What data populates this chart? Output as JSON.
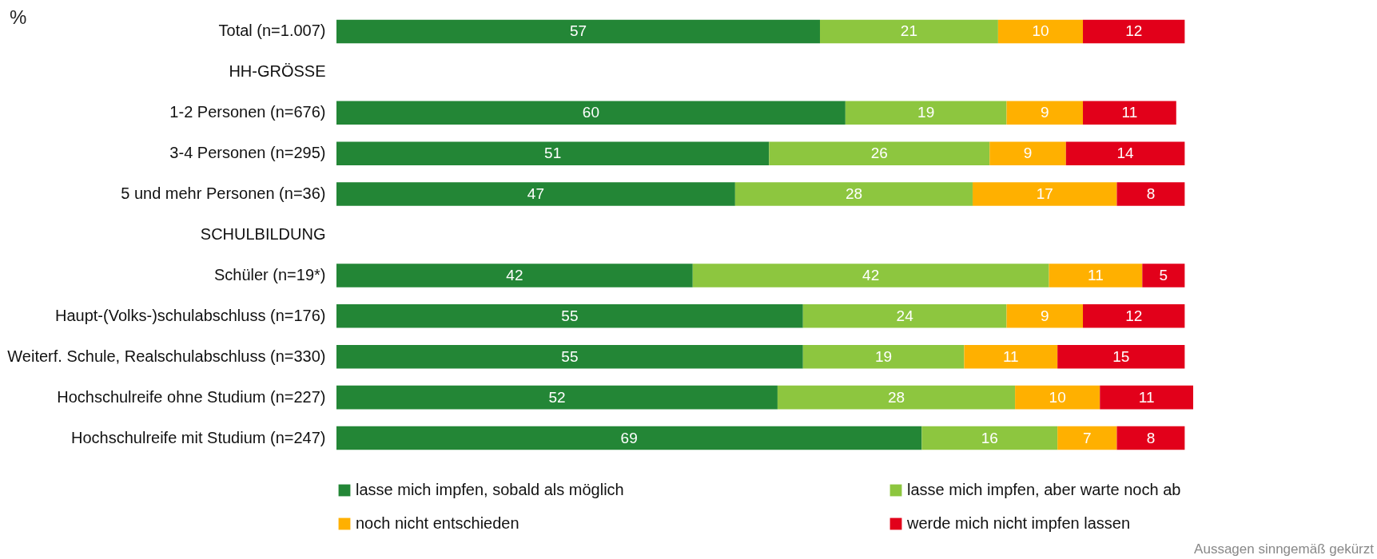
{
  "chart_data": {
    "type": "bar",
    "orientation": "horizontal",
    "stacked": true,
    "data_labels": true,
    "legend": "bottom",
    "xlim": [
      0,
      101
    ],
    "categories": [
      "Total (n=1.007)",
      "HH-GRÖSSE",
      "1-2 Personen (n=676)",
      "3-4 Personen (n=295)",
      "5 und mehr Personen (n=36)",
      "SCHULBILDUNG",
      "Schüler (n=19*)",
      "Haupt-(Volks-)schulabschluss (n=176)",
      "Weiterf. Schule, Realschulabschluss (n=330)",
      "Hochschulreife ohne Studium (n=227)",
      "Hochschulreife mit Studium (n=247)"
    ],
    "series": [
      {
        "name": "lasse mich impfen, sobald als möglich",
        "color": "#238636",
        "values": [
          57,
          null,
          60,
          51,
          47,
          null,
          42,
          55,
          55,
          52,
          69
        ]
      },
      {
        "name": "lasse mich impfen, aber warte noch ab",
        "color": "#8dc63f",
        "values": [
          21,
          null,
          19,
          26,
          28,
          null,
          42,
          24,
          19,
          28,
          16
        ]
      },
      {
        "name": "noch nicht entschieden",
        "color": "#ffb000",
        "values": [
          10,
          null,
          9,
          9,
          17,
          null,
          11,
          9,
          11,
          10,
          7
        ]
      },
      {
        "name": "werde mich nicht impfen lassen",
        "color": "#e2001a",
        "values": [
          12,
          null,
          11,
          14,
          8,
          null,
          5,
          12,
          15,
          11,
          8
        ]
      }
    ],
    "annotations": [
      "%",
      "Aussagen sinngemäß gekürzt"
    ]
  }
}
